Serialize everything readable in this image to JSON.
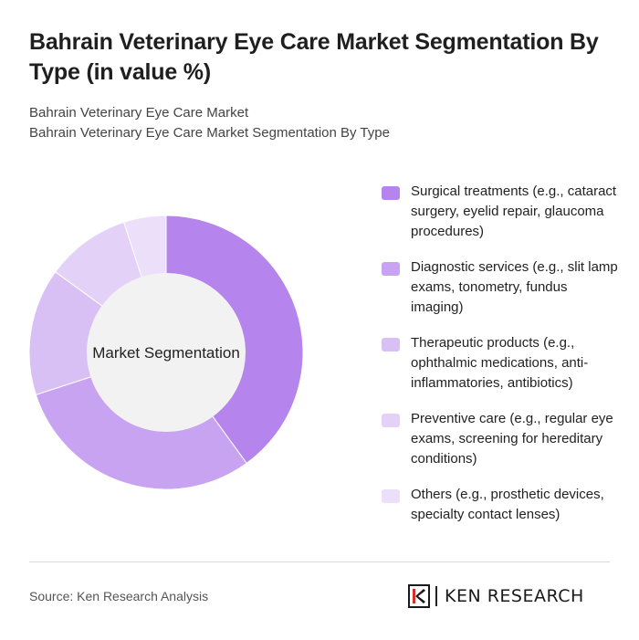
{
  "header": {
    "title": "Bahrain Veterinary Eye Care Market Segmentation By Type (in value %)",
    "subtitle_line1": "Bahrain Veterinary Eye Care Market",
    "subtitle_line2": "Bahrain Veterinary Eye Care Market Segmentation By Type"
  },
  "chart_data": {
    "type": "pie",
    "center_label": "Market Segmentation",
    "categories": [
      "Surgical treatments (e.g., cataract surgery, eyelid repair, glaucoma procedures)",
      "Diagnostic services (e.g., slit lamp exams, tonometry, fundus imaging)",
      "Therapeutic products (e.g., ophthalmic medications, anti-inflammatories, antibiotics)",
      "Preventive care (e.g., regular eye exams, screening for hereditary conditions)",
      "Others (e.g., prosthetic devices, specialty contact lenses)"
    ],
    "values": [
      40,
      30,
      15,
      10,
      5
    ],
    "colors": [
      "#b584ec",
      "#c8a3f1",
      "#d8c0f5",
      "#e3d1f8",
      "#ecdffa"
    ],
    "legend_position": "right"
  },
  "footer": {
    "source": "Source: Ken Research Analysis",
    "brand": "KEN RESEARCH"
  }
}
